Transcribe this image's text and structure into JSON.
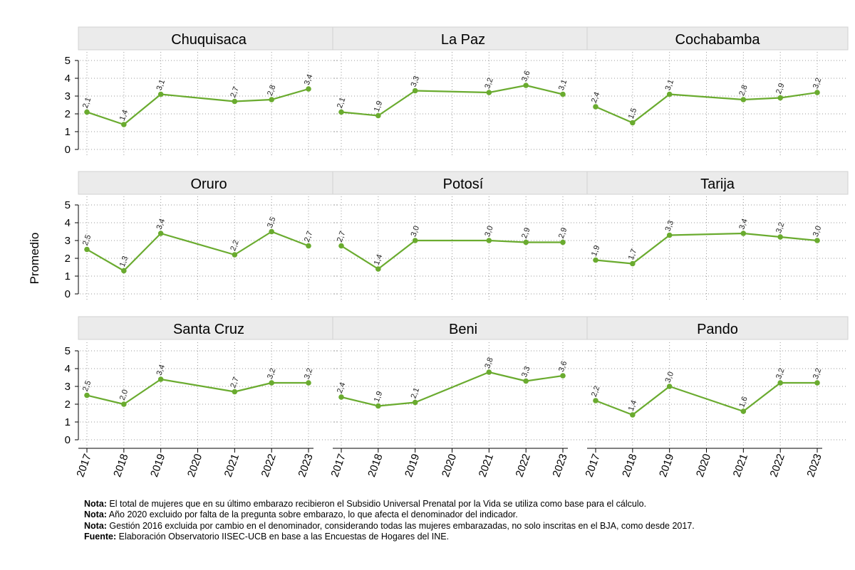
{
  "chart_data": {
    "type": "line",
    "ylabel": "Promedio",
    "ylim": [
      0,
      5
    ],
    "yticks": [
      "0",
      "1",
      "2",
      "3",
      "4",
      "5"
    ],
    "x_ticks": [
      "2017",
      "2018",
      "2019",
      "2020",
      "2021",
      "2022",
      "2023"
    ],
    "line_color": "#6aab2f",
    "panels": [
      {
        "title": "Chuquisaca",
        "x": [
          2017,
          2018,
          2019,
          2021,
          2022,
          2023
        ],
        "values": [
          2.1,
          1.4,
          3.1,
          2.7,
          2.8,
          3.4
        ],
        "labels": [
          "2,1",
          "1,4",
          "3,1",
          "2,7",
          "2,8",
          "3,4"
        ]
      },
      {
        "title": "La Paz",
        "x": [
          2017,
          2018,
          2019,
          2021,
          2022,
          2023
        ],
        "values": [
          2.1,
          1.9,
          3.3,
          3.2,
          3.6,
          3.1
        ],
        "labels": [
          "2,1",
          "1,9",
          "3,3",
          "3,2",
          "3,6",
          "3,1"
        ]
      },
      {
        "title": "Cochabamba",
        "x": [
          2017,
          2018,
          2019,
          2021,
          2022,
          2023
        ],
        "values": [
          2.4,
          1.5,
          3.1,
          2.8,
          2.9,
          3.2
        ],
        "labels": [
          "2,4",
          "1,5",
          "3,1",
          "2,8",
          "2,9",
          "3,2"
        ]
      },
      {
        "title": "Oruro",
        "x": [
          2017,
          2018,
          2019,
          2021,
          2022,
          2023
        ],
        "values": [
          2.5,
          1.3,
          3.4,
          2.2,
          3.5,
          2.7
        ],
        "labels": [
          "2,5",
          "1,3",
          "3,4",
          "2,2",
          "3,5",
          "2,7"
        ]
      },
      {
        "title": "Potosí",
        "x": [
          2017,
          2018,
          2019,
          2021,
          2022,
          2023
        ],
        "values": [
          2.7,
          1.4,
          3.0,
          3.0,
          2.9,
          2.9
        ],
        "labels": [
          "2,7",
          "1,4",
          "3,0",
          "3,0",
          "2,9",
          "2,9"
        ]
      },
      {
        "title": "Tarija",
        "x": [
          2017,
          2018,
          2019,
          2021,
          2022,
          2023
        ],
        "values": [
          1.9,
          1.7,
          3.3,
          3.4,
          3.2,
          3.0
        ],
        "labels": [
          "1,9",
          "1,7",
          "3,3",
          "3,4",
          "3,2",
          "3,0"
        ]
      },
      {
        "title": "Santa Cruz",
        "x": [
          2017,
          2018,
          2019,
          2021,
          2022,
          2023
        ],
        "values": [
          2.5,
          2.0,
          3.4,
          2.7,
          3.2,
          3.2
        ],
        "labels": [
          "2,5",
          "2,0",
          "3,4",
          "2,7",
          "3,2",
          "3,2"
        ]
      },
      {
        "title": "Beni",
        "x": [
          2017,
          2018,
          2019,
          2021,
          2022,
          2023
        ],
        "values": [
          2.4,
          1.9,
          2.1,
          3.8,
          3.3,
          3.6
        ],
        "labels": [
          "2,4",
          "1,9",
          "2,1",
          "3,8",
          "3,3",
          "3,6"
        ]
      },
      {
        "title": "Pando",
        "x": [
          2017,
          2018,
          2019,
          2021,
          2022,
          2023
        ],
        "values": [
          2.2,
          1.4,
          3.0,
          1.6,
          3.2,
          3.2
        ],
        "labels": [
          "2,2",
          "1,4",
          "3,0",
          "1,6",
          "3,2",
          "3,2"
        ]
      }
    ]
  },
  "notes": [
    {
      "label": "Nota:",
      "text": " El total de mujeres que en su último embarazo recibieron el Subsidio Universal Prenatal por la Vida se utiliza como base para el cálculo."
    },
    {
      "label": "Nota:",
      "text": " Año 2020 excluido por falta de la pregunta sobre embarazo, lo que afecta el denominador del indicador."
    },
    {
      "label": "Nota:",
      "text": " Gestión 2016 excluida por cambio en el denominador, considerando todas las mujeres embarazadas, no solo inscritas en el BJA, como desde 2017."
    },
    {
      "label": "Fuente:",
      "text": " Elaboración Observatorio IISEC-UCB en base a las Encuestas de Hogares del INE."
    }
  ]
}
